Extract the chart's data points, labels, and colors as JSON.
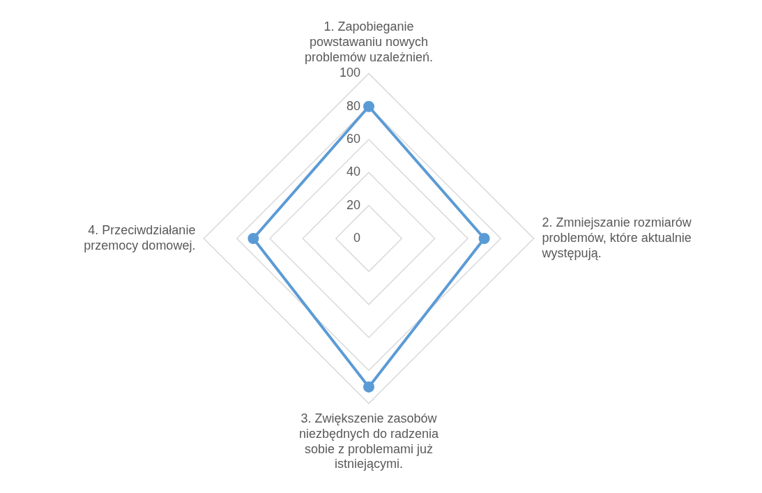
{
  "chart_data": {
    "type": "radar",
    "categories": [
      "1. Zapobieganie powstawaniu nowych problemów uzależnień.",
      "2. Zmniejszanie rozmiarów problemów, które aktualnie występują.",
      "3. Zwiększenie zasobów niezbędnych do radzenia sobie z problemami już istniejącymi.",
      "4. Przeciwdziałanie przemocy domowej."
    ],
    "series": [
      {
        "color": "#5b9bd5",
        "values": [
          80,
          70,
          90,
          70
        ]
      }
    ],
    "ylim": [
      0,
      100
    ],
    "yticks": [
      0,
      20,
      40,
      60,
      80,
      100
    ],
    "grid": true,
    "legend": false,
    "marker": "circle",
    "line_style": "solid"
  }
}
